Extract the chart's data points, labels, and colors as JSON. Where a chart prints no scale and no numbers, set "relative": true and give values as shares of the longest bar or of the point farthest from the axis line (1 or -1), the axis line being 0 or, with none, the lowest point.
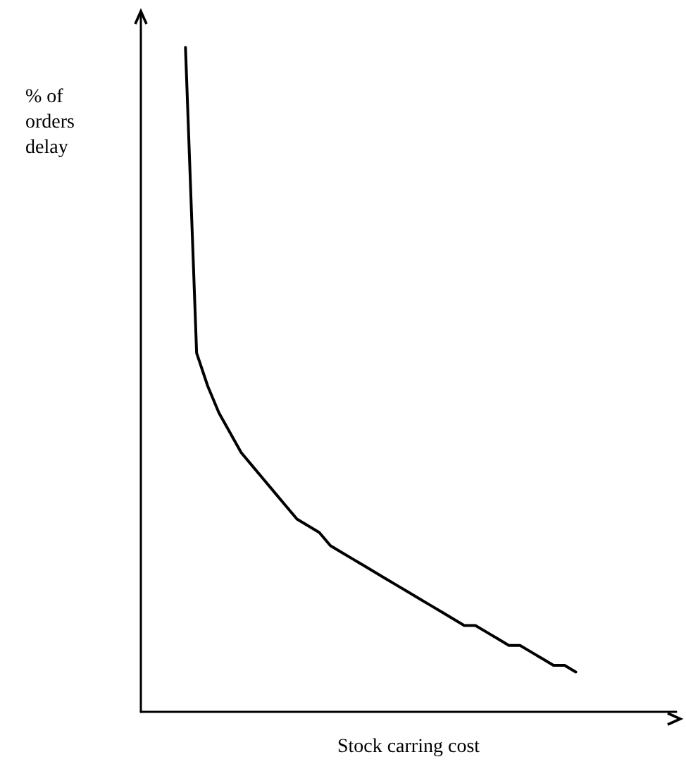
{
  "chart_data": {
    "type": "line",
    "relative": true,
    "xlabel": "Stock carring cost",
    "ylabel": "% of orders delay",
    "grid": false,
    "marker": "none",
    "line_style": "solid",
    "categories": [
      null,
      null,
      null,
      null,
      null,
      null,
      null,
      null,
      null,
      null,
      null,
      null,
      null,
      null,
      null,
      null,
      null,
      null,
      null,
      null,
      null,
      null,
      null,
      null,
      null,
      null,
      null,
      null,
      null,
      null,
      null,
      null,
      null,
      null,
      null,
      null,
      null,
      null,
      null,
      null,
      null,
      null,
      null,
      null,
      null,
      null,
      null,
      null,
      null
    ],
    "series": [
      {
        "color": "#000000",
        "values": [
          null,
          null,
          null,
          null,
          1,
          0.54,
          0.49,
          0.45,
          0.42,
          0.39,
          0.37,
          0.35,
          0.33,
          0.31,
          0.29,
          0.28,
          0.27,
          0.25,
          0.24,
          0.23,
          0.22,
          0.21,
          0.2,
          0.19,
          0.18,
          0.17,
          0.16,
          0.15,
          0.14,
          0.13,
          0.13,
          0.12,
          0.11,
          0.1,
          0.1,
          0.09,
          0.08,
          0.07,
          0.07,
          0.06,
          null,
          null,
          null,
          null,
          null,
          null,
          null,
          null,
          null
        ]
      }
    ]
  }
}
